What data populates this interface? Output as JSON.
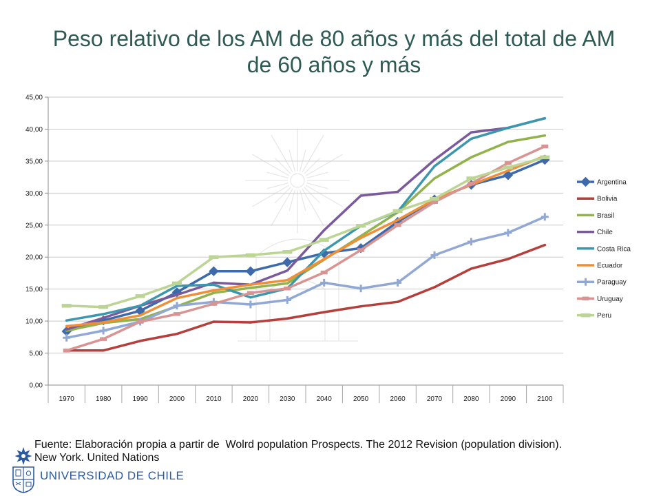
{
  "chart_data": {
    "type": "line",
    "title": "Peso relativo de los AM de 80 años y más del total de AM de 60 años y más",
    "xlabel": "",
    "ylabel": "",
    "categories": [
      "1970",
      "1980",
      "1990",
      "2000",
      "2010",
      "2020",
      "2030",
      "2040",
      "2050",
      "2060",
      "2070",
      "2080",
      "2090",
      "2100"
    ],
    "ylim": [
      0,
      45
    ],
    "ytick_step": 5,
    "ytick_labels": [
      "0,00",
      "5,00",
      "10,00",
      "15,00",
      "20,00",
      "25,00",
      "30,00",
      "35,00",
      "40,00",
      "45,00"
    ],
    "grid": true,
    "legend_position": "right",
    "series": [
      {
        "name": "Argentina",
        "color": "#3e6aab",
        "marker": "diamond",
        "values": [
          8.4,
          10.1,
          11.6,
          14.5,
          17.8,
          17.8,
          19.2,
          20.6,
          21.4,
          25.5,
          29.0,
          31.3,
          32.8,
          35.2
        ]
      },
      {
        "name": "Bolivia",
        "color": "#b43f3c",
        "marker": "none",
        "values": [
          5.4,
          5.4,
          6.9,
          8.0,
          9.9,
          9.8,
          10.4,
          11.4,
          12.3,
          13.0,
          15.3,
          18.2,
          19.7,
          21.9
        ]
      },
      {
        "name": "Brasil",
        "color": "#92b24b",
        "marker": "none",
        "values": [
          8.5,
          9.7,
          10.3,
          12.3,
          14.4,
          15.2,
          15.9,
          19.6,
          23.3,
          27.0,
          32.3,
          35.6,
          38.0,
          39.0
        ]
      },
      {
        "name": "Chile",
        "color": "#7b5a9c",
        "marker": "none",
        "values": [
          8.7,
          10.5,
          12.4,
          14.1,
          16.0,
          15.7,
          17.9,
          24.2,
          29.6,
          30.2,
          35.2,
          39.5,
          40.2,
          41.7
        ]
      },
      {
        "name": "Costa Rica",
        "color": "#3c97ae",
        "marker": "none",
        "values": [
          10.1,
          11.1,
          12.4,
          15.5,
          15.7,
          13.7,
          15.1,
          21.0,
          24.9,
          27.1,
          34.2,
          38.5,
          40.2,
          41.7
        ]
      },
      {
        "name": "Ecuador",
        "color": "#ef8f3a",
        "marker": "none",
        "values": [
          9.2,
          9.8,
          10.9,
          13.6,
          14.8,
          15.7,
          16.4,
          19.7,
          23.0,
          25.8,
          29.0,
          31.3,
          33.5,
          35.8
        ]
      },
      {
        "name": "Paraguay",
        "color": "#91a8d4",
        "marker": "plus",
        "values": [
          7.4,
          8.5,
          9.9,
          12.4,
          13.0,
          12.6,
          13.3,
          16.0,
          15.1,
          16.0,
          20.3,
          22.4,
          23.8,
          26.3
        ]
      },
      {
        "name": "Uruguay",
        "color": "#d89493",
        "marker": "dash",
        "values": [
          5.4,
          7.2,
          9.9,
          11.1,
          12.7,
          14.4,
          15.1,
          17.6,
          21.1,
          25.0,
          28.6,
          31.5,
          34.7,
          37.3
        ]
      },
      {
        "name": "Peru",
        "color": "#bcd494",
        "marker": "longdash",
        "values": [
          12.4,
          12.2,
          13.9,
          15.9,
          20.0,
          20.3,
          20.8,
          22.7,
          24.9,
          27.2,
          29.1,
          32.3,
          34.0,
          35.6
        ]
      }
    ]
  },
  "footer": {
    "source_lines": [
      "Fuente: Elaboración propia a partir de  Wolrd population Prospects. The 2012 Revision (population division).",
      "New York. United Nations"
    ]
  },
  "logo": {
    "text": "UNIVERSIDAD DE CHILE",
    "emblem_icon": "university-shield-icon"
  },
  "colors": {
    "title": "#2f5a54",
    "logo": "#2c5aa0",
    "axis": "#8c8c8c",
    "grid": "#c9c9c9",
    "watermark": "#d2d2d2"
  }
}
